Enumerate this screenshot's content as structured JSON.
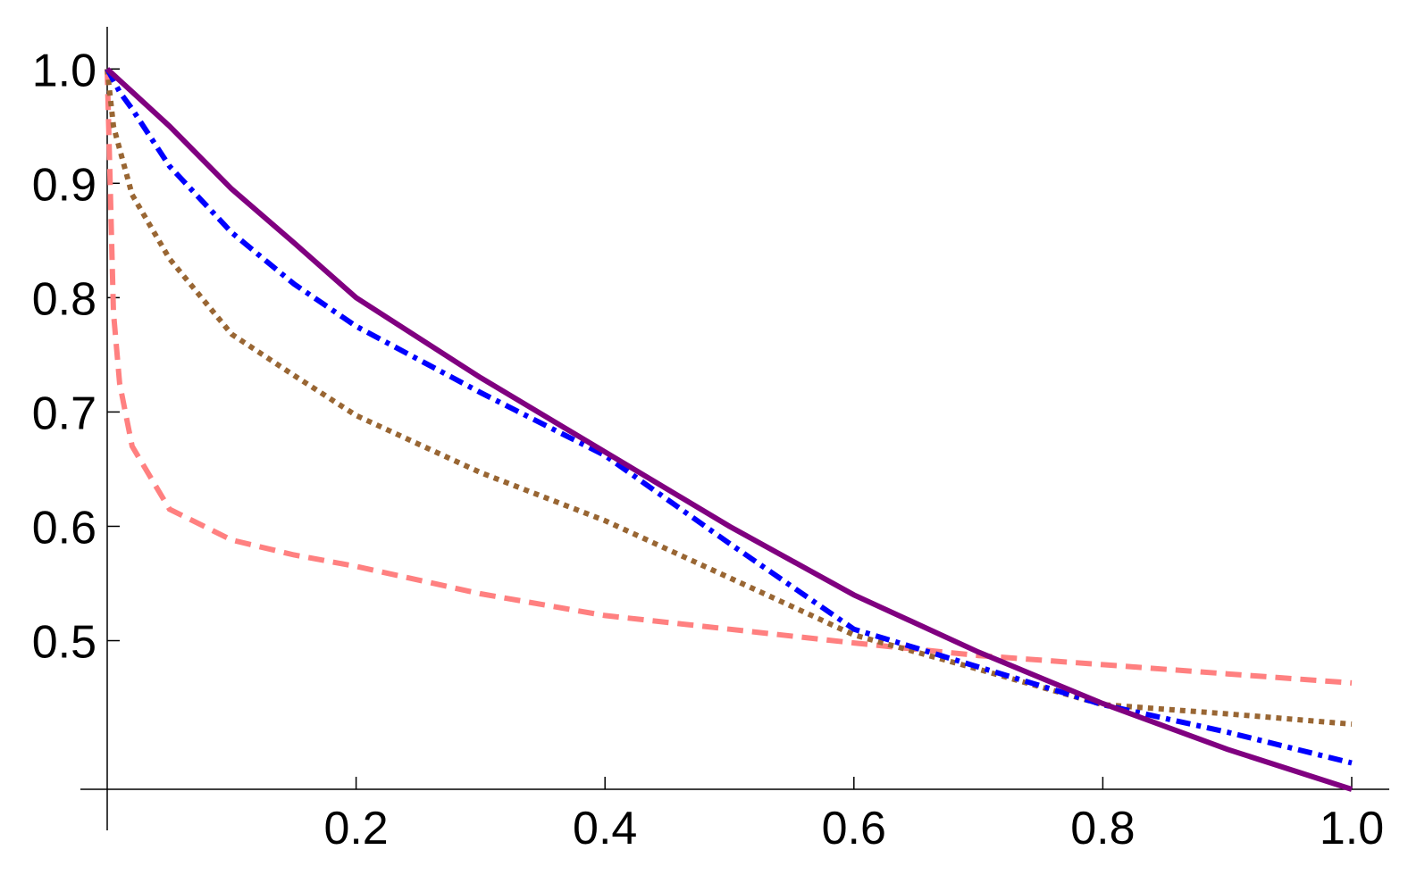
{
  "chart_data": {
    "type": "line",
    "x": [
      0,
      0.005,
      0.01,
      0.02,
      0.05,
      0.1,
      0.15,
      0.2,
      0.3,
      0.4,
      0.5,
      0.6,
      0.7,
      0.8,
      0.9,
      1.0
    ],
    "series": [
      {
        "color": "#ff8080",
        "style": "dashed",
        "values": [
          1,
          0.787,
          0.725,
          0.67,
          0.615,
          0.588,
          0.575,
          0.565,
          0.541,
          0.522,
          0.51,
          0.498,
          0.487,
          0.479,
          0.471,
          0.463
        ]
      },
      {
        "color": "#996633",
        "style": "dotted",
        "values": [
          1,
          0.95,
          0.93,
          0.89,
          0.834,
          0.768,
          0.732,
          0.697,
          0.647,
          0.605,
          0.555,
          0.505,
          0.475,
          0.444,
          0.436,
          0.427
        ]
      },
      {
        "color": "#0000ff",
        "style": "dashdot",
        "values": [
          1,
          0.99,
          0.98,
          0.965,
          0.915,
          0.857,
          0.812,
          0.775,
          0.717,
          0.662,
          0.585,
          0.51,
          0.477,
          0.444,
          0.42,
          0.393
        ]
      },
      {
        "color": "#800080",
        "style": "solid",
        "values": [
          1,
          0.995,
          0.99,
          0.98,
          0.95,
          0.895,
          0.848,
          0.8,
          0.73,
          0.665,
          0.6,
          0.54,
          0.49,
          0.445,
          0.405,
          0.37
        ]
      }
    ],
    "xlim": [
      0,
      1.023
    ],
    "ylim": [
      0.37,
      1.033
    ],
    "xticks": [
      0.2,
      0.4,
      0.6,
      0.8,
      {
        "value": 1,
        "label": "1.0"
      }
    ],
    "yticks": [
      0.5,
      0.6,
      0.7,
      0.8,
      0.9,
      {
        "value": 1,
        "label": "1.0"
      }
    ]
  }
}
